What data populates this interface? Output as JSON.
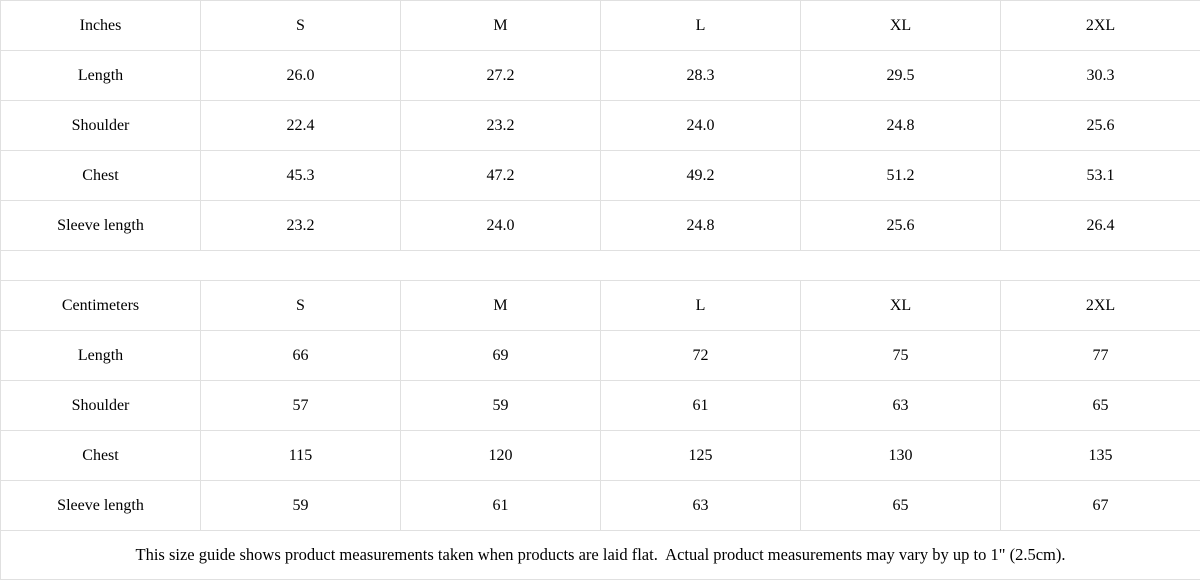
{
  "colors": {
    "header_bg": "#f1f1f1",
    "label_bg": "#f1f1f1",
    "cell_bg": "#ffffff",
    "border": "#e0e0e0",
    "text": "#000000"
  },
  "tables": [
    {
      "unit_label": "Inches",
      "sizes": [
        "S",
        "M",
        "L",
        "XL",
        "2XL"
      ],
      "rows": [
        {
          "label": "Length",
          "values": [
            "26.0",
            "27.2",
            "28.3",
            "29.5",
            "30.3"
          ]
        },
        {
          "label": "Shoulder",
          "values": [
            "22.4",
            "23.2",
            "24.0",
            "24.8",
            "25.6"
          ]
        },
        {
          "label": "Chest",
          "values": [
            "45.3",
            "47.2",
            "49.2",
            "51.2",
            "53.1"
          ]
        },
        {
          "label": "Sleeve length",
          "values": [
            "23.2",
            "24.0",
            "24.8",
            "25.6",
            "26.4"
          ]
        }
      ]
    },
    {
      "unit_label": "Centimeters",
      "sizes": [
        "S",
        "M",
        "L",
        "XL",
        "2XL"
      ],
      "rows": [
        {
          "label": "Length",
          "values": [
            "66",
            "69",
            "72",
            "75",
            "77"
          ]
        },
        {
          "label": "Shoulder",
          "values": [
            "57",
            "59",
            "61",
            "63",
            "65"
          ]
        },
        {
          "label": "Chest",
          "values": [
            "115",
            "120",
            "125",
            "130",
            "135"
          ]
        },
        {
          "label": "Sleeve length",
          "values": [
            "59",
            "61",
            "63",
            "65",
            "67"
          ]
        }
      ]
    }
  ],
  "footer_note": "This size guide shows product measurements taken when products are laid flat.  Actual product measurements may vary by up to 1\" (2.5cm)."
}
